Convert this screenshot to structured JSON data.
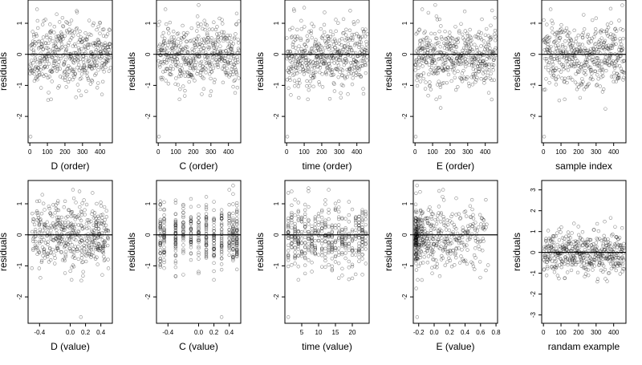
{
  "figure": {
    "rows": 2,
    "cols": 5
  },
  "chart_data": [
    {
      "type": "scatter",
      "xlabel": "D (order)",
      "ylabel": "residuals",
      "xlim": [
        -10,
        470
      ],
      "ylim": [
        -2.85,
        1.75
      ],
      "xticks": [
        "0",
        "100",
        "200",
        "300",
        "400"
      ],
      "xtick_values": [
        0,
        100,
        200,
        300,
        400
      ],
      "yticks": [
        "-2",
        "-1",
        "0",
        "1"
      ],
      "ytick_values": [
        -2,
        -1,
        0,
        1
      ],
      "ref_y": 0,
      "x_kind": "index",
      "x_count": 460,
      "y_seed": 11
    },
    {
      "type": "scatter",
      "xlabel": "C (order)",
      "ylabel": "residuals",
      "xlim": [
        -10,
        470
      ],
      "ylim": [
        -2.85,
        1.75
      ],
      "xticks": [
        "0",
        "100",
        "200",
        "300",
        "400"
      ],
      "xtick_values": [
        0,
        100,
        200,
        300,
        400
      ],
      "yticks": [
        "-2",
        "-1",
        "0",
        "1"
      ],
      "ytick_values": [
        -2,
        -1,
        0,
        1
      ],
      "ref_y": 0,
      "x_kind": "index",
      "x_count": 460,
      "y_seed": 23
    },
    {
      "type": "scatter",
      "xlabel": "time (order)",
      "ylabel": "residuals",
      "xlim": [
        -10,
        470
      ],
      "ylim": [
        -2.85,
        1.75
      ],
      "xticks": [
        "0",
        "100",
        "200",
        "300",
        "400"
      ],
      "xtick_values": [
        0,
        100,
        200,
        300,
        400
      ],
      "yticks": [
        "-2",
        "-1",
        "0",
        "1"
      ],
      "ytick_values": [
        -2,
        -1,
        0,
        1
      ],
      "ref_y": 0,
      "x_kind": "index",
      "x_count": 460,
      "y_seed": 37
    },
    {
      "type": "scatter",
      "xlabel": "E (order)",
      "ylabel": "residuals",
      "xlim": [
        -10,
        470
      ],
      "ylim": [
        -2.85,
        1.75
      ],
      "xticks": [
        "0",
        "100",
        "200",
        "300",
        "400"
      ],
      "xtick_values": [
        0,
        100,
        200,
        300,
        400
      ],
      "yticks": [
        "-2",
        "-1",
        "0",
        "1"
      ],
      "ytick_values": [
        -2,
        -1,
        0,
        1
      ],
      "ref_y": 0,
      "x_kind": "index",
      "x_count": 460,
      "y_seed": 41
    },
    {
      "type": "scatter",
      "xlabel": "sample index",
      "ylabel": "residuals",
      "xlim": [
        -10,
        470
      ],
      "ylim": [
        -2.85,
        1.75
      ],
      "xticks": [
        "0",
        "100",
        "200",
        "300",
        "400"
      ],
      "xtick_values": [
        0,
        100,
        200,
        300,
        400
      ],
      "yticks": [
        "-2",
        "-1",
        "0",
        "1"
      ],
      "ytick_values": [
        -2,
        -1,
        0,
        1
      ],
      "ref_y": 0,
      "x_kind": "index",
      "x_count": 460,
      "y_seed": 53
    },
    {
      "type": "scatter",
      "xlabel": "D (value)",
      "ylabel": "residuals",
      "xlim": [
        -0.55,
        0.55
      ],
      "ylim": [
        -2.85,
        1.75
      ],
      "xticks": [
        "-0.4",
        "0.0",
        "0.2",
        "0.4"
      ],
      "xtick_values": [
        -0.4,
        0.0,
        0.2,
        0.4
      ],
      "yticks": [
        "-2",
        "-1",
        "0",
        "1"
      ],
      "ytick_values": [
        -2,
        -1,
        0,
        1
      ],
      "ref_y": 0,
      "x_kind": "uniform",
      "x_range": [
        -0.5,
        0.5
      ],
      "x_count": 460,
      "y_seed": 11
    },
    {
      "type": "scatter",
      "xlabel": "C (value)",
      "ylabel": "residuals",
      "xlim": [
        -0.55,
        0.55
      ],
      "ylim": [
        -2.85,
        1.75
      ],
      "xticks": [
        "-0.4",
        "0.0",
        "0.2",
        "0.4"
      ],
      "xtick_values": [
        -0.4,
        0.0,
        0.2,
        0.4
      ],
      "yticks": [
        "-2",
        "-1",
        "0",
        "1"
      ],
      "ytick_values": [
        -2,
        -1,
        0,
        1
      ],
      "ref_y": 0,
      "x_kind": "levels",
      "x_levels": [
        -0.5,
        -0.45,
        -0.3,
        -0.2,
        -0.1,
        0.0,
        0.1,
        0.2,
        0.3,
        0.4,
        0.45,
        0.5
      ],
      "x_count": 460,
      "y_seed": 23
    },
    {
      "type": "scatter",
      "xlabel": "time (value)",
      "ylabel": "residuals",
      "xlim": [
        0,
        25
      ],
      "ylim": [
        -2.85,
        1.75
      ],
      "xticks": [
        "5",
        "10",
        "15",
        "20"
      ],
      "xtick_values": [
        5,
        10,
        15,
        20
      ],
      "yticks": [
        "-2",
        "-1",
        "0",
        "1"
      ],
      "ytick_values": [
        -2,
        -1,
        0,
        1
      ],
      "ref_y": 0,
      "x_kind": "levels",
      "x_levels": [
        1,
        2,
        3,
        4,
        5,
        6,
        7,
        8,
        9,
        10,
        11,
        12,
        13,
        14,
        15,
        16,
        17,
        18,
        19,
        20,
        21,
        22,
        23,
        24
      ],
      "x_count": 460,
      "y_seed": 37
    },
    {
      "type": "scatter",
      "xlabel": "E (value)",
      "ylabel": "residuals",
      "xlim": [
        -0.27,
        0.82
      ],
      "ylim": [
        -2.85,
        1.75
      ],
      "xticks": [
        "-0.2",
        "0.0",
        "0.2",
        "0.4",
        "0.6",
        "0.8"
      ],
      "xtick_values": [
        -0.2,
        0.0,
        0.2,
        0.4,
        0.6,
        0.8
      ],
      "yticks": [
        "-2",
        "-1",
        "0",
        "1"
      ],
      "ytick_values": [
        -2,
        -1,
        0,
        1
      ],
      "ref_y": 0,
      "x_kind": "skewed",
      "x_range": [
        -0.24,
        0.7
      ],
      "x_count": 460,
      "y_seed": 41
    },
    {
      "type": "scatter",
      "xlabel": "randam example",
      "ylabel": "residuals",
      "xlim": [
        -10,
        470
      ],
      "ylim": [
        -3.4,
        3.45
      ],
      "xticks": [
        "0",
        "100",
        "200",
        "300",
        "400"
      ],
      "xtick_values": [
        0,
        100,
        200,
        300,
        400
      ],
      "yticks": [
        "-3",
        "-2",
        "-1",
        "0",
        "1",
        "2",
        "3"
      ],
      "ytick_values": [
        -3,
        -2,
        -1,
        0,
        1,
        2,
        3
      ],
      "ref_y": 0,
      "x_kind": "index",
      "x_count": 460,
      "y_seed": 97,
      "y_scale": 1.05
    }
  ]
}
